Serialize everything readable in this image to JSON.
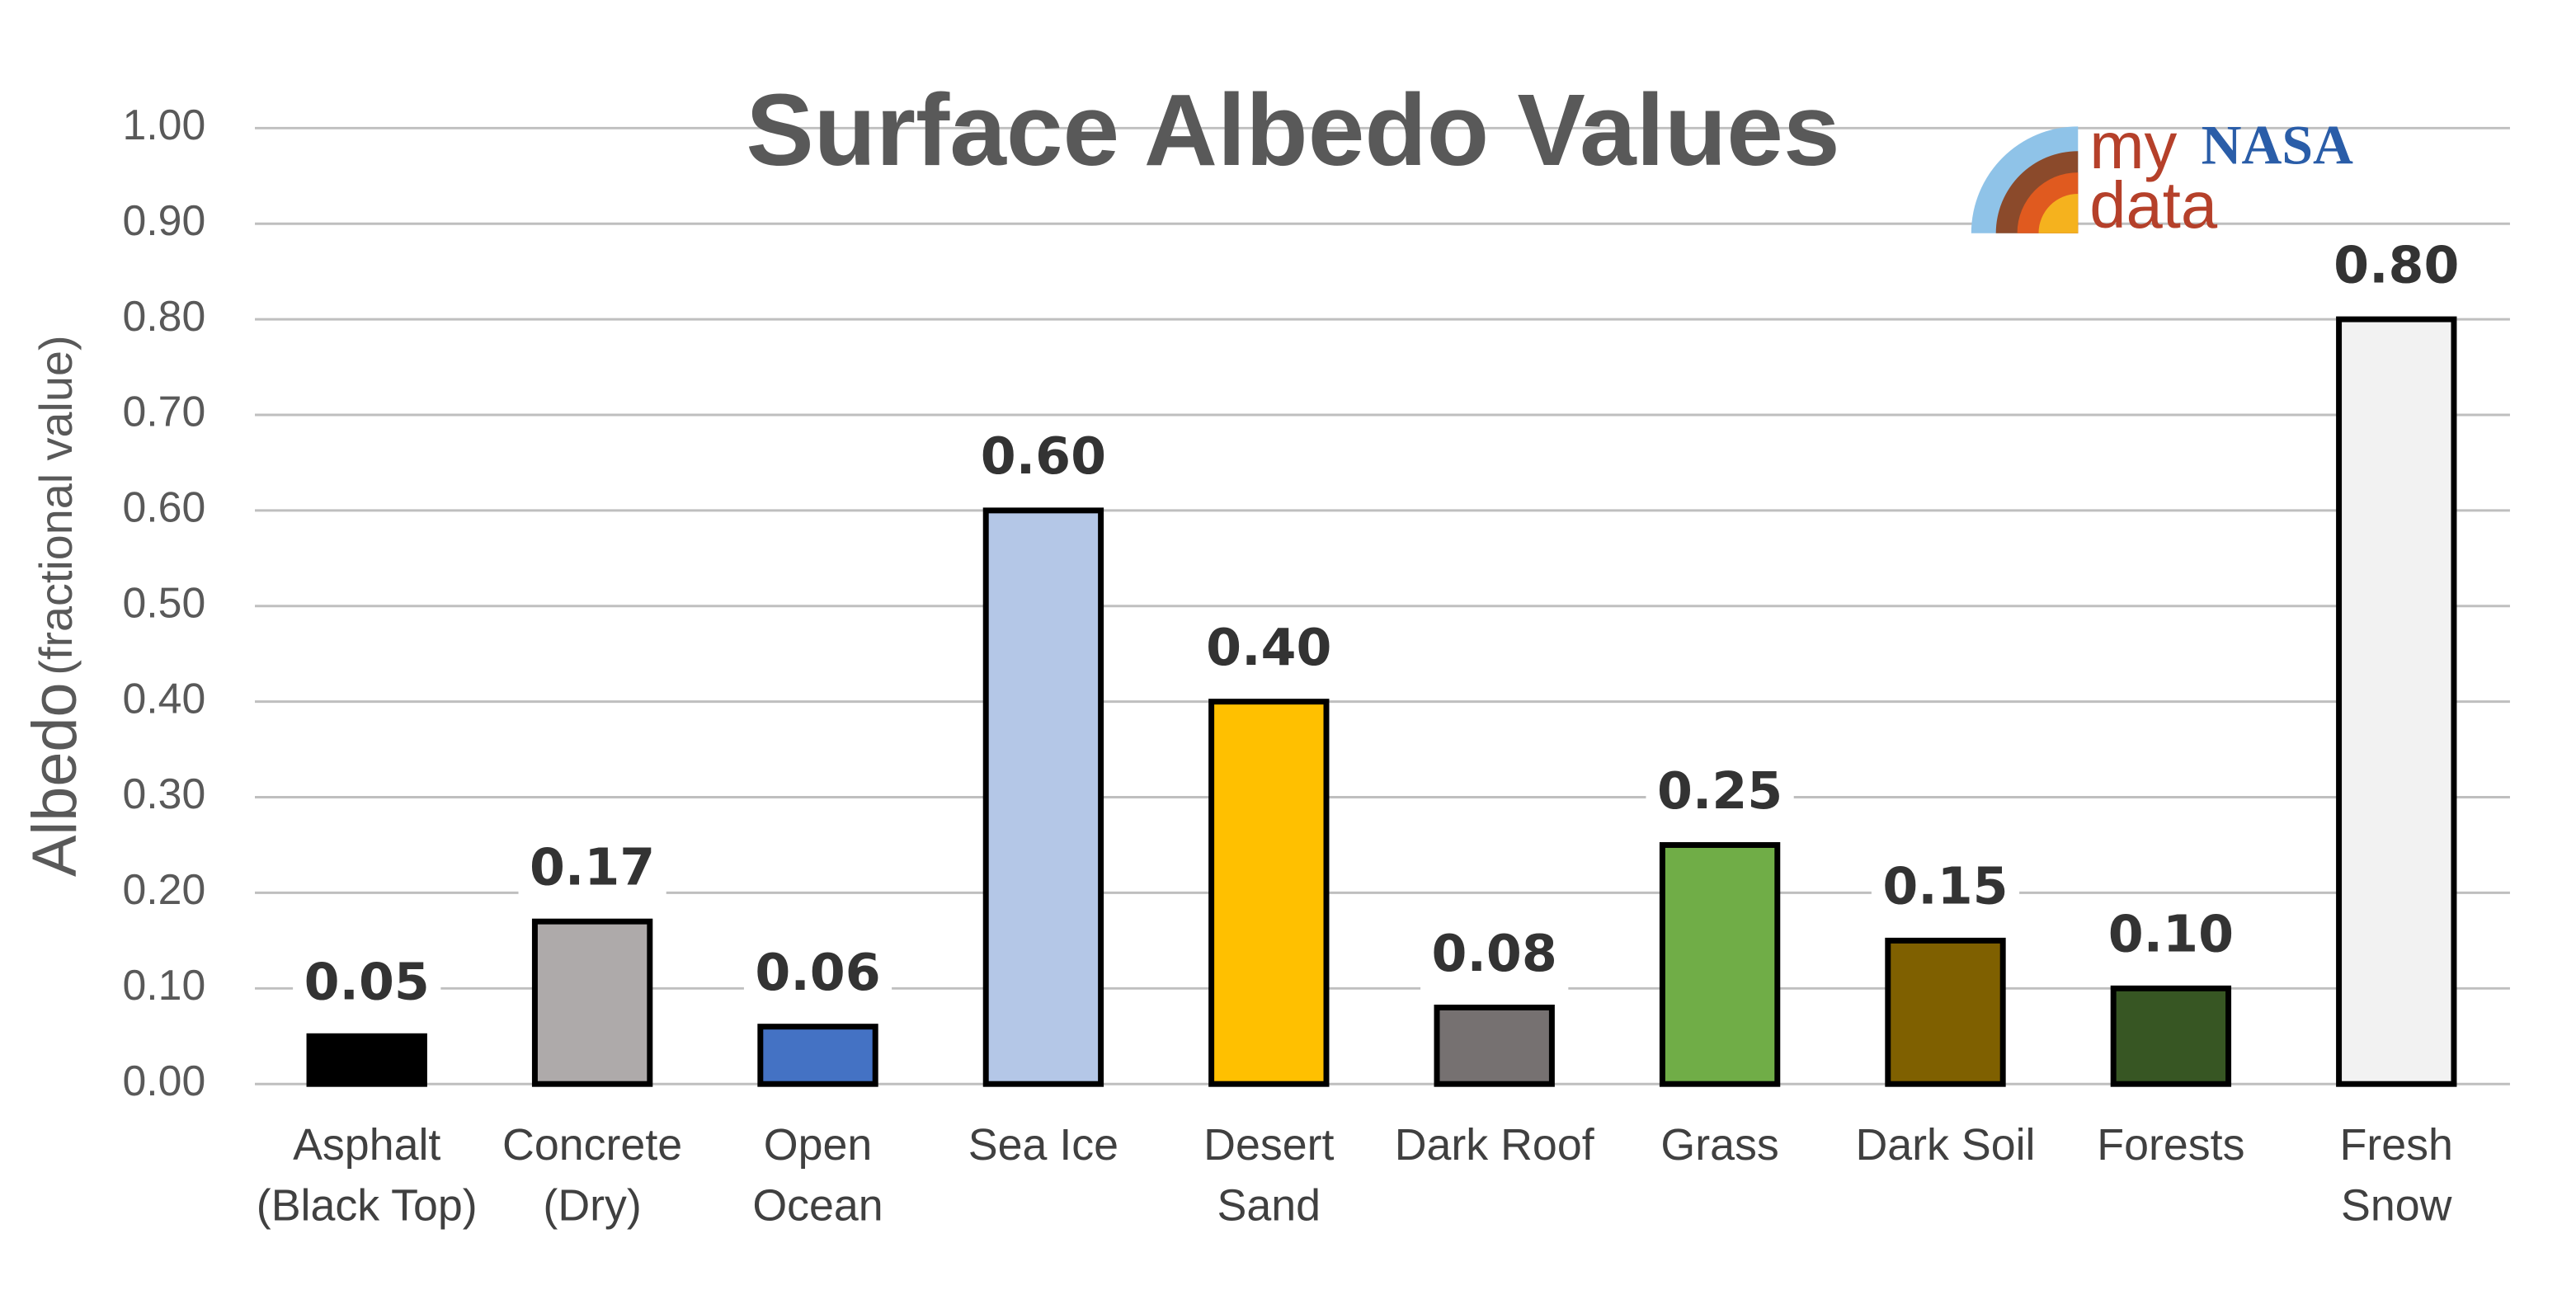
{
  "chart_data": {
    "type": "bar",
    "title": "Surface Albedo Values",
    "ylabel": {
      "main": "Albedo",
      "note": "(fractional value)"
    },
    "logo": {
      "my": "my",
      "nasa": "NASA",
      "data": "data"
    },
    "categories": [
      [
        "Asphalt",
        "(Black Top)"
      ],
      [
        "Concrete",
        "(Dry)"
      ],
      [
        "Open",
        "Ocean"
      ],
      [
        "Sea Ice"
      ],
      [
        "Desert",
        "Sand"
      ],
      [
        "Dark Roof"
      ],
      [
        "Grass"
      ],
      [
        "Dark Soil"
      ],
      [
        "Forests"
      ],
      [
        "Fresh",
        "Snow"
      ]
    ],
    "values": [
      0.05,
      0.17,
      0.06,
      0.6,
      0.4,
      0.08,
      0.25,
      0.15,
      0.1,
      0.8
    ],
    "value_labels": [
      "0.05",
      "0.17",
      "0.06",
      "0.60",
      "0.40",
      "0.08",
      "0.25",
      "0.15",
      "0.10",
      "0.80"
    ],
    "colors": [
      "#000000",
      "#aeaaaa",
      "#4472c4",
      "#b4c7e7",
      "#ffc000",
      "#767171",
      "#70ad47",
      "#7f6000",
      "#375623",
      "#f2f2f2"
    ],
    "ylim": [
      0,
      1
    ],
    "yticks": [
      {
        "value": 0,
        "label": "0.00"
      },
      {
        "value": 0.1,
        "label": "0.10"
      },
      {
        "value": 0.2,
        "label": "0.20"
      },
      {
        "value": 0.3,
        "label": "0.30"
      },
      {
        "value": 0.4,
        "label": "0.40"
      },
      {
        "value": 0.5,
        "label": "0.50"
      },
      {
        "value": 0.6,
        "label": "0.60"
      },
      {
        "value": 0.7,
        "label": "0.70"
      },
      {
        "value": 0.8,
        "label": "0.80"
      },
      {
        "value": 0.9,
        "label": "0.90"
      },
      {
        "value": 1,
        "label": "1.00"
      }
    ],
    "grid": true
  }
}
